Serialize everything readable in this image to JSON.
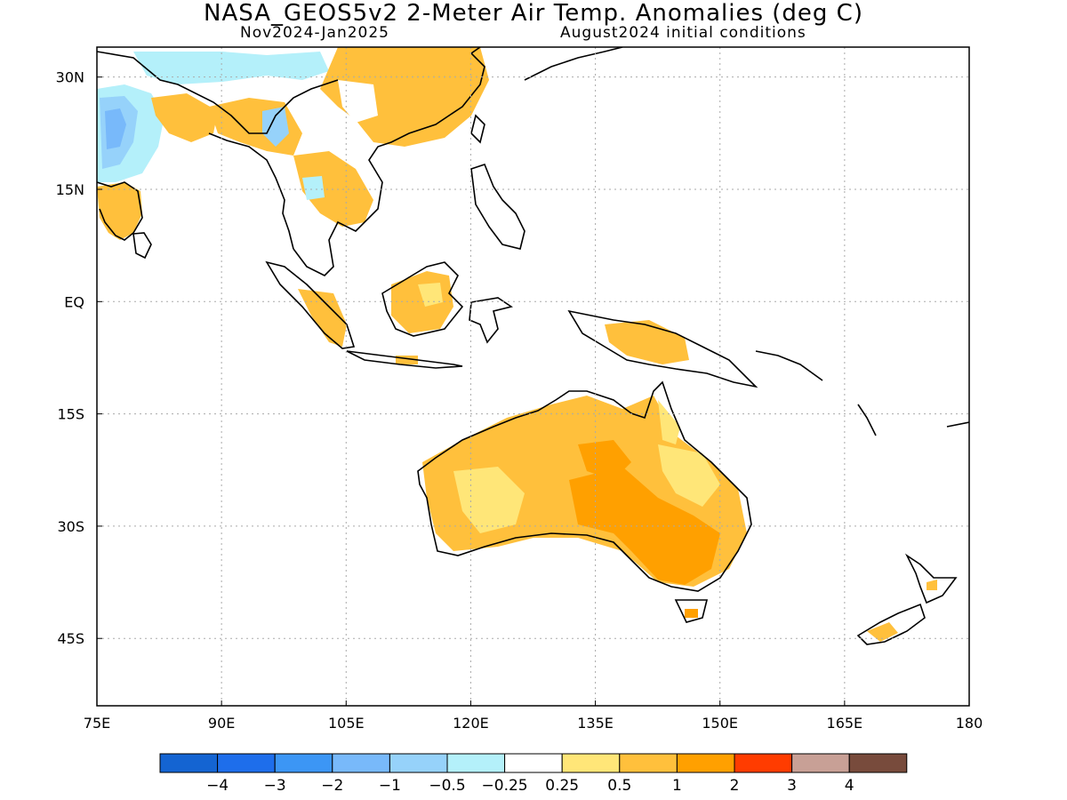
{
  "title": "NASA_GEOS5v2 2-Meter Air Temp. Anomalies (deg C)",
  "subtitle_left": "Nov2024-Jan2025",
  "subtitle_right": "August2024 initial conditions",
  "map": {
    "lon_range": [
      75,
      180
    ],
    "lat_range": [
      -54,
      34
    ],
    "lat_ticks": [
      {
        "value": 30,
        "label": "30N"
      },
      {
        "value": 15,
        "label": "15N"
      },
      {
        "value": 0,
        "label": "EQ"
      },
      {
        "value": -15,
        "label": "15S"
      },
      {
        "value": -30,
        "label": "30S"
      },
      {
        "value": -45,
        "label": "45S"
      }
    ],
    "lon_ticks": [
      {
        "value": 75,
        "label": "75E"
      },
      {
        "value": 90,
        "label": "90E"
      },
      {
        "value": 105,
        "label": "105E"
      },
      {
        "value": 120,
        "label": "120E"
      },
      {
        "value": 135,
        "label": "135E"
      },
      {
        "value": 150,
        "label": "150E"
      },
      {
        "value": 165,
        "label": "165E"
      },
      {
        "value": 180,
        "label": "180"
      }
    ],
    "grid": true
  },
  "colorbar": {
    "colors": [
      "#1464d2",
      "#1e6eeb",
      "#3c96f5",
      "#78b9fa",
      "#96d2fa",
      "#b4f0fa",
      "#ffffff",
      "#ffe678",
      "#ffc03c",
      "#ffa000",
      "#ff3c00",
      "#c8a096",
      "#784b3c"
    ],
    "labels": [
      "-4",
      "-3",
      "-2",
      "-1",
      "-0.5",
      "-0.25",
      "0.25",
      "0.5",
      "1",
      "2",
      "3",
      "4"
    ]
  },
  "colors": {
    "land_outline": "#000000",
    "warm_05": "#ffe678",
    "warm_1": "#ffc03c",
    "warm_2": "#ffa000",
    "cool_025": "#b4f0fa",
    "cool_05": "#96d2fa",
    "cool_1": "#78b9fa"
  }
}
